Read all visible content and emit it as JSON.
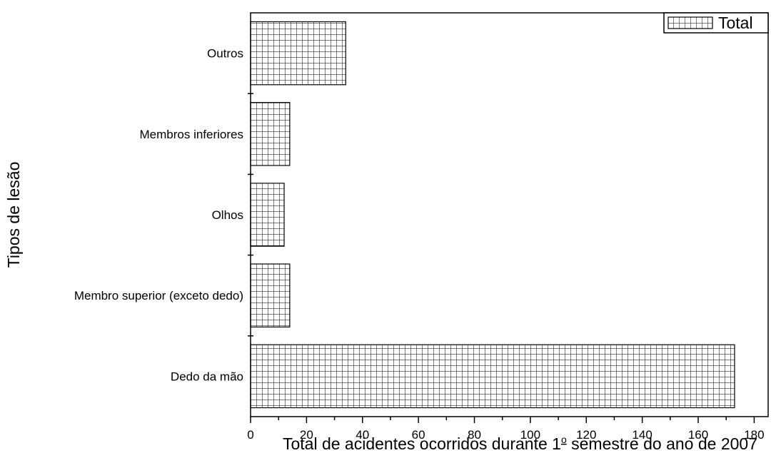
{
  "chart_data": {
    "type": "bar",
    "orientation": "horizontal",
    "categories": [
      "Dedo da mão",
      "Membro superior (exceto dedo)",
      "Olhos",
      "Membros inferiores",
      "Outros"
    ],
    "series": [
      {
        "name": "Total",
        "values": [
          173,
          14,
          12,
          14,
          34
        ]
      }
    ],
    "xlabel": "Total de acidentes ocorridos durante 1º semestre do ano de 2007",
    "xlabel_parts": {
      "before": "Total de acidentes ocorridos durante 1",
      "sup": "o",
      "after": " semestre do ano de 2007"
    },
    "ylabel": "Tipos de lesão",
    "xlim": [
      0,
      185
    ],
    "xticks": [
      0,
      20,
      40,
      60,
      80,
      100,
      120,
      140,
      160,
      180
    ],
    "grid": false,
    "legend": {
      "position": "top-right",
      "label": "Total"
    },
    "bar_fill": "crosshatch",
    "colors": {
      "stroke": "#000000",
      "background": "#ffffff"
    }
  }
}
